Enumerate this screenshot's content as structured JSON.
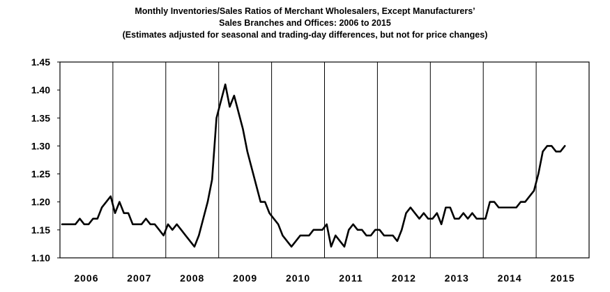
{
  "chart_data": {
    "type": "line",
    "title": "Monthly Inventories/Sales Ratios of Merchant Wholesalers, Except Manufacturers’",
    "title_line2": "Sales Branches and Offices: 2006 to 2015",
    "subtitle": "(Estimates adjusted for seasonal and trading-day differences, but not for price changes)",
    "xlabel": "",
    "ylabel": "",
    "ylim": [
      1.1,
      1.45
    ],
    "yticks": [
      "1.10",
      "1.15",
      "1.20",
      "1.25",
      "1.30",
      "1.35",
      "1.40",
      "1.45"
    ],
    "year_labels": [
      "2006",
      "2007",
      "2008",
      "2009",
      "2010",
      "2011",
      "2012",
      "2013",
      "2014",
      "2015"
    ],
    "grid": "vertical year separators",
    "line_color": "#000000",
    "series": [
      {
        "values": [
          1.16,
          1.16,
          1.16,
          1.16,
          1.17,
          1.16,
          1.16,
          1.17,
          1.17,
          1.19,
          1.2,
          1.21,
          1.18,
          1.2,
          1.18,
          1.18,
          1.16,
          1.16,
          1.16,
          1.17,
          1.16,
          1.16,
          1.15,
          1.14,
          1.16,
          1.15,
          1.16,
          1.15,
          1.14,
          1.13,
          1.12,
          1.14,
          1.17,
          1.2,
          1.24,
          1.35,
          1.38,
          1.41,
          1.37,
          1.39,
          1.36,
          1.33,
          1.29,
          1.26,
          1.23,
          1.2,
          1.2,
          1.18,
          1.17,
          1.16,
          1.14,
          1.13,
          1.12,
          1.13,
          1.14,
          1.14,
          1.14,
          1.15,
          1.15,
          1.15,
          1.16,
          1.12,
          1.14,
          1.13,
          1.12,
          1.15,
          1.16,
          1.15,
          1.15,
          1.14,
          1.14,
          1.15,
          1.15,
          1.14,
          1.14,
          1.14,
          1.13,
          1.15,
          1.18,
          1.19,
          1.18,
          1.17,
          1.18,
          1.17,
          1.17,
          1.18,
          1.16,
          1.19,
          1.19,
          1.17,
          1.17,
          1.18,
          1.17,
          1.18,
          1.17,
          1.17,
          1.17,
          1.2,
          1.2,
          1.19,
          1.19,
          1.19,
          1.19,
          1.19,
          1.2,
          1.2,
          1.21,
          1.22,
          1.25,
          1.29,
          1.3,
          1.3,
          1.29,
          1.29,
          1.3
        ]
      }
    ]
  }
}
